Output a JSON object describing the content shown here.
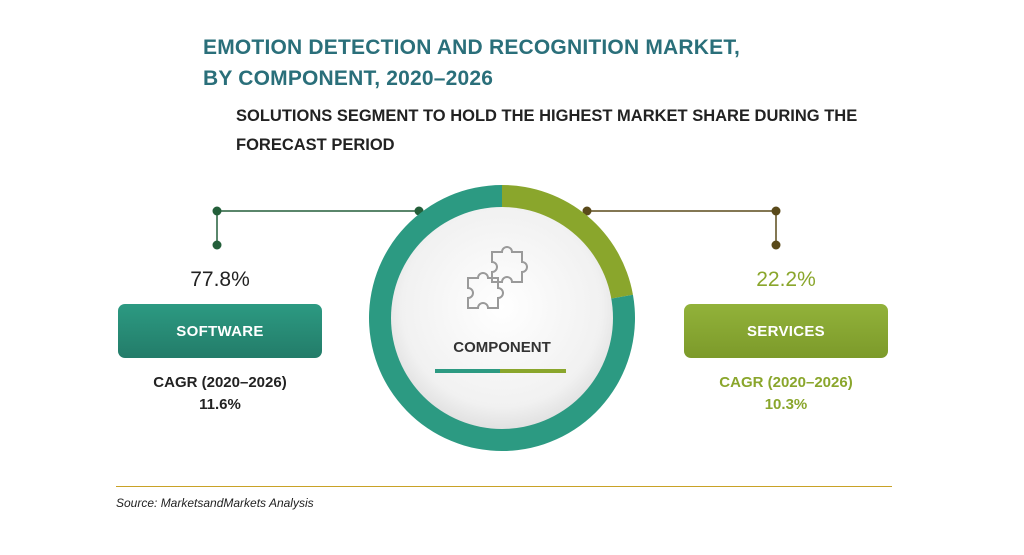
{
  "chart_data": {
    "type": "pie",
    "title": "EMOTION DETECTION AND RECOGNITION MARKET,",
    "title_line2": "BY COMPONENT, 2020–2026",
    "subtitle": "SOLUTIONS SEGMENT TO HOLD THE HIGHEST MARKET SHARE DURING THE FORECAST PERIOD",
    "center_label": "COMPONENT",
    "series": [
      {
        "name": "SOFTWARE",
        "value": 77.8,
        "value_label": "77.8%",
        "cagr_label": "CAGR (2020–2026)",
        "cagr_value": "11.6%",
        "color": "#2c9a82"
      },
      {
        "name": "SERVICES",
        "value": 22.2,
        "value_label": "22.2%",
        "cagr_label": "CAGR (2020–2026)",
        "cagr_value": "10.3%",
        "color": "#8aa62c"
      }
    ]
  },
  "colors": {
    "title": "#2a6f7a",
    "accent_rule": "#c9a227",
    "center_icon": "puzzle-icon"
  },
  "source": "Source: MarketsandMarkets Analysis"
}
